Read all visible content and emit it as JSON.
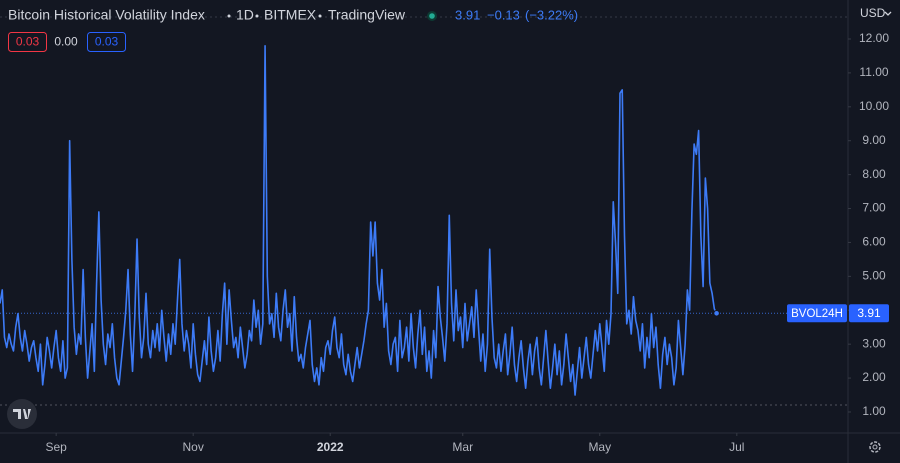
{
  "chart_data": {
    "type": "line",
    "title": "Bitcoin Historical Volatility Index",
    "interval": "1D",
    "exchange": "BITMEX",
    "source": "TradingView",
    "currency": "USD",
    "change": {
      "value": -0.13,
      "label": "−0.13"
    },
    "change_percent": {
      "value": -3.22,
      "label": "(−3.22%)"
    },
    "indicator_values": [
      0.03,
      {
        "value": 0,
        "label": "0.00"
      },
      0.03
    ],
    "indicator_colors": [
      "#f23645",
      "#2962ff"
    ],
    "xlim": [
      0,
      377.5
    ],
    "xticks": [
      {
        "value": 25,
        "label": "Sep"
      },
      {
        "value": 86,
        "label": "Nov"
      },
      {
        "value": 147,
        "label": "2022"
      },
      {
        "value": 206,
        "label": "Mar"
      },
      {
        "value": 267,
        "label": "May"
      },
      {
        "value": 328,
        "label": "Jul"
      }
    ],
    "ylim": [
      0.38,
      13.15
    ],
    "yticks": [
      {
        "value": 1,
        "label": "1.00"
      },
      {
        "value": 2,
        "label": "2.00"
      },
      {
        "value": 3,
        "label": "3.00"
      },
      {
        "value": 4,
        "label": "4.00"
      },
      {
        "value": 5,
        "label": "5.00"
      },
      {
        "value": 6,
        "label": "6.00"
      },
      {
        "value": 7,
        "label": "7.00"
      },
      {
        "value": 8,
        "label": "8.00"
      },
      {
        "value": 9,
        "label": "9.00"
      },
      {
        "value": 10,
        "label": "10.00"
      },
      {
        "value": 11,
        "label": "11.00"
      },
      {
        "value": 12,
        "label": "12.00"
      }
    ],
    "grid": false,
    "series": [
      {
        "name": "BVOL24H",
        "color": "#3d7bf7",
        "values": [
          4.2,
          4.6,
          3.2,
          2.9,
          3.3,
          3.0,
          2.8,
          3.5,
          3.9,
          3.2,
          2.8,
          3.4,
          3.0,
          2.5,
          2.9,
          3.1,
          2.6,
          2.2,
          3.0,
          1.8,
          2.4,
          3.2,
          2.8,
          2.3,
          2.9,
          3.4,
          2.6,
          2.2,
          3.1,
          2.0,
          2.3,
          9.0,
          5.5,
          3.5,
          2.7,
          3.3,
          3.0,
          5.2,
          3.2,
          2.0,
          2.8,
          3.6,
          2.2,
          4.8,
          6.9,
          4.3,
          3.0,
          2.4,
          3.3,
          2.9,
          3.6,
          2.6,
          2.0,
          1.8,
          2.5,
          3.2,
          4.0,
          5.2,
          3.3,
          2.2,
          3.8,
          6.1,
          3.8,
          2.6,
          3.2,
          4.5,
          3.0,
          2.6,
          3.4,
          2.9,
          3.6,
          2.8,
          4.0,
          3.2,
          2.5,
          3.3,
          2.7,
          3.6,
          3.0,
          4.3,
          5.5,
          3.6,
          2.8,
          3.4,
          3.0,
          2.3,
          3.6,
          2.7,
          2.1,
          1.9,
          2.5,
          3.1,
          2.4,
          3.8,
          2.8,
          2.2,
          2.6,
          3.4,
          2.5,
          3.9,
          4.8,
          3.0,
          4.6,
          3.7,
          2.9,
          3.2,
          2.6,
          3.5,
          2.9,
          2.3,
          2.7,
          3.4,
          3.1,
          4.3,
          3.5,
          4.0,
          3.0,
          3.6,
          11.8,
          5.0,
          3.6,
          3.9,
          3.2,
          4.5,
          3.5,
          3.1,
          4.0,
          4.6,
          3.5,
          3.9,
          2.8,
          4.4,
          3.2,
          2.5,
          2.7,
          2.3,
          2.9,
          3.3,
          3.7,
          2.4,
          1.9,
          2.3,
          1.8,
          2.6,
          2.2,
          2.9,
          3.1,
          2.7,
          3.4,
          3.8,
          2.9,
          2.6,
          3.3,
          2.4,
          2.1,
          2.7,
          2.2,
          1.9,
          2.4,
          2.9,
          2.3,
          2.7,
          3.1,
          3.6,
          4.0,
          6.6,
          5.6,
          6.6,
          4.8,
          4.3,
          5.2,
          3.5,
          4.2,
          2.8,
          2.4,
          3.0,
          3.2,
          2.2,
          3.7,
          2.6,
          2.9,
          3.5,
          2.5,
          3.9,
          2.9,
          2.3,
          3.3,
          4.0,
          2.7,
          3.5,
          2.2,
          2.8,
          2.0,
          3.4,
          2.6,
          4.7,
          3.8,
          3.2,
          2.5,
          3.6,
          6.8,
          4.2,
          3.1,
          4.6,
          3.4,
          3.8,
          2.9,
          4.2,
          3.1,
          3.6,
          4.1,
          3.2,
          4.6,
          3.5,
          2.5,
          3.3,
          2.2,
          3.0,
          5.8,
          3.8,
          2.6,
          2.3,
          3.0,
          2.2,
          2.8,
          3.3,
          2.1,
          2.7,
          3.5,
          2.4,
          1.9,
          2.6,
          3.1,
          2.3,
          1.7,
          2.5,
          3.0,
          2.1,
          2.8,
          3.2,
          2.3,
          1.8,
          2.6,
          3.4,
          2.5,
          1.7,
          2.3,
          3.0,
          2.1,
          2.8,
          1.8,
          2.4,
          3.3,
          2.6,
          1.9,
          2.4,
          1.5,
          2.2,
          2.9,
          2.0,
          2.6,
          3.2,
          2.4,
          2.0,
          2.7,
          3.4,
          2.8,
          3.6,
          2.9,
          2.2,
          3.7,
          3.0,
          3.9,
          7.2,
          6.0,
          4.5,
          10.4,
          10.5,
          6.2,
          3.6,
          4.0,
          3.3,
          4.4,
          3.7,
          3.4,
          2.8,
          3.6,
          2.3,
          3.2,
          2.6,
          3.9,
          2.9,
          3.5,
          2.4,
          1.7,
          2.7,
          3.2,
          2.4,
          3.0,
          2.6,
          1.8,
          2.3,
          3.7,
          2.9,
          2.1,
          3.0,
          4.6,
          4.0,
          6.9,
          8.9,
          8.6,
          9.3,
          6.2,
          4.7,
          7.9,
          7.0,
          4.8,
          4.5,
          4.04,
          3.91
        ]
      }
    ]
  }
}
